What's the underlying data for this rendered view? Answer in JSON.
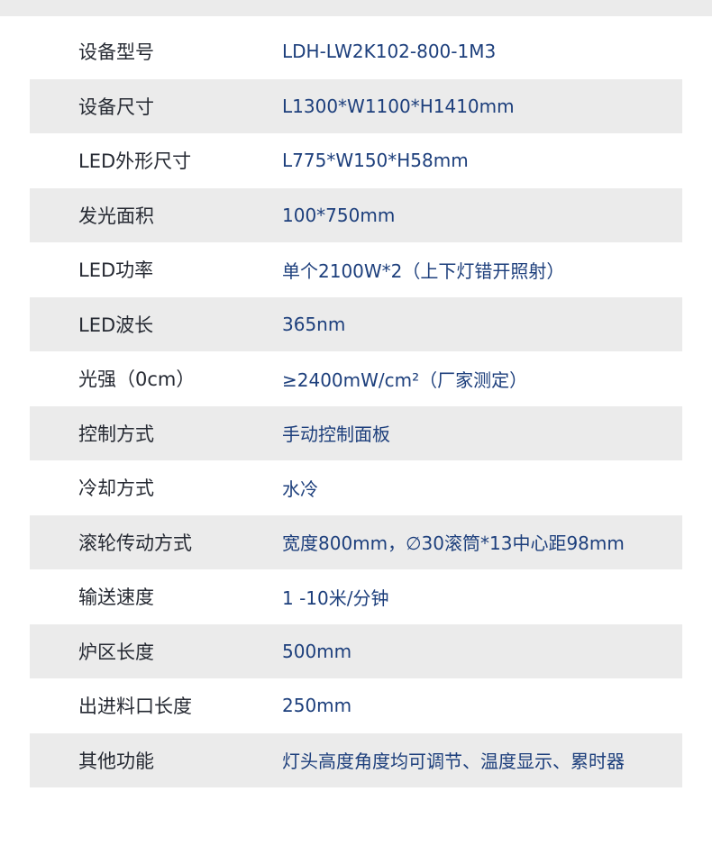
{
  "specs": [
    {
      "label": "设备型号",
      "value": "LDH-LW2K102-800-1M3"
    },
    {
      "label": "设备尺寸",
      "value": "L1300*W1100*H1410mm"
    },
    {
      "label": "LED外形尺寸",
      "value": "L775*W150*H58mm"
    },
    {
      "label": "发光面积",
      "value": "100*750mm"
    },
    {
      "label": "LED功率",
      "value": "单个2100W*2（上下灯错开照射）"
    },
    {
      "label": "LED波长",
      "value": "365nm"
    },
    {
      "label": "光强（0cm）",
      "value": "≥2400mW/cm²（厂家测定）"
    },
    {
      "label": "控制方式",
      "value": "手动控制面板"
    },
    {
      "label": "冷却方式",
      "value": "水冷"
    },
    {
      "label": "滚轮传动方式",
      "value": "宽度800mm，∅30滚筒*13中心距98mm"
    },
    {
      "label": "输送速度",
      "value": "1 -10米/分钟"
    },
    {
      "label": "炉区长度",
      "value": "500mm"
    },
    {
      "label": "出进料口长度",
      "value": "250mm"
    },
    {
      "label": "其他功能",
      "value": "灯头高度角度均可调节、温度显示、累时器"
    }
  ],
  "colors": {
    "stripe": "#ebebeb",
    "label": "#262a33",
    "value": "#1d3f7c"
  }
}
